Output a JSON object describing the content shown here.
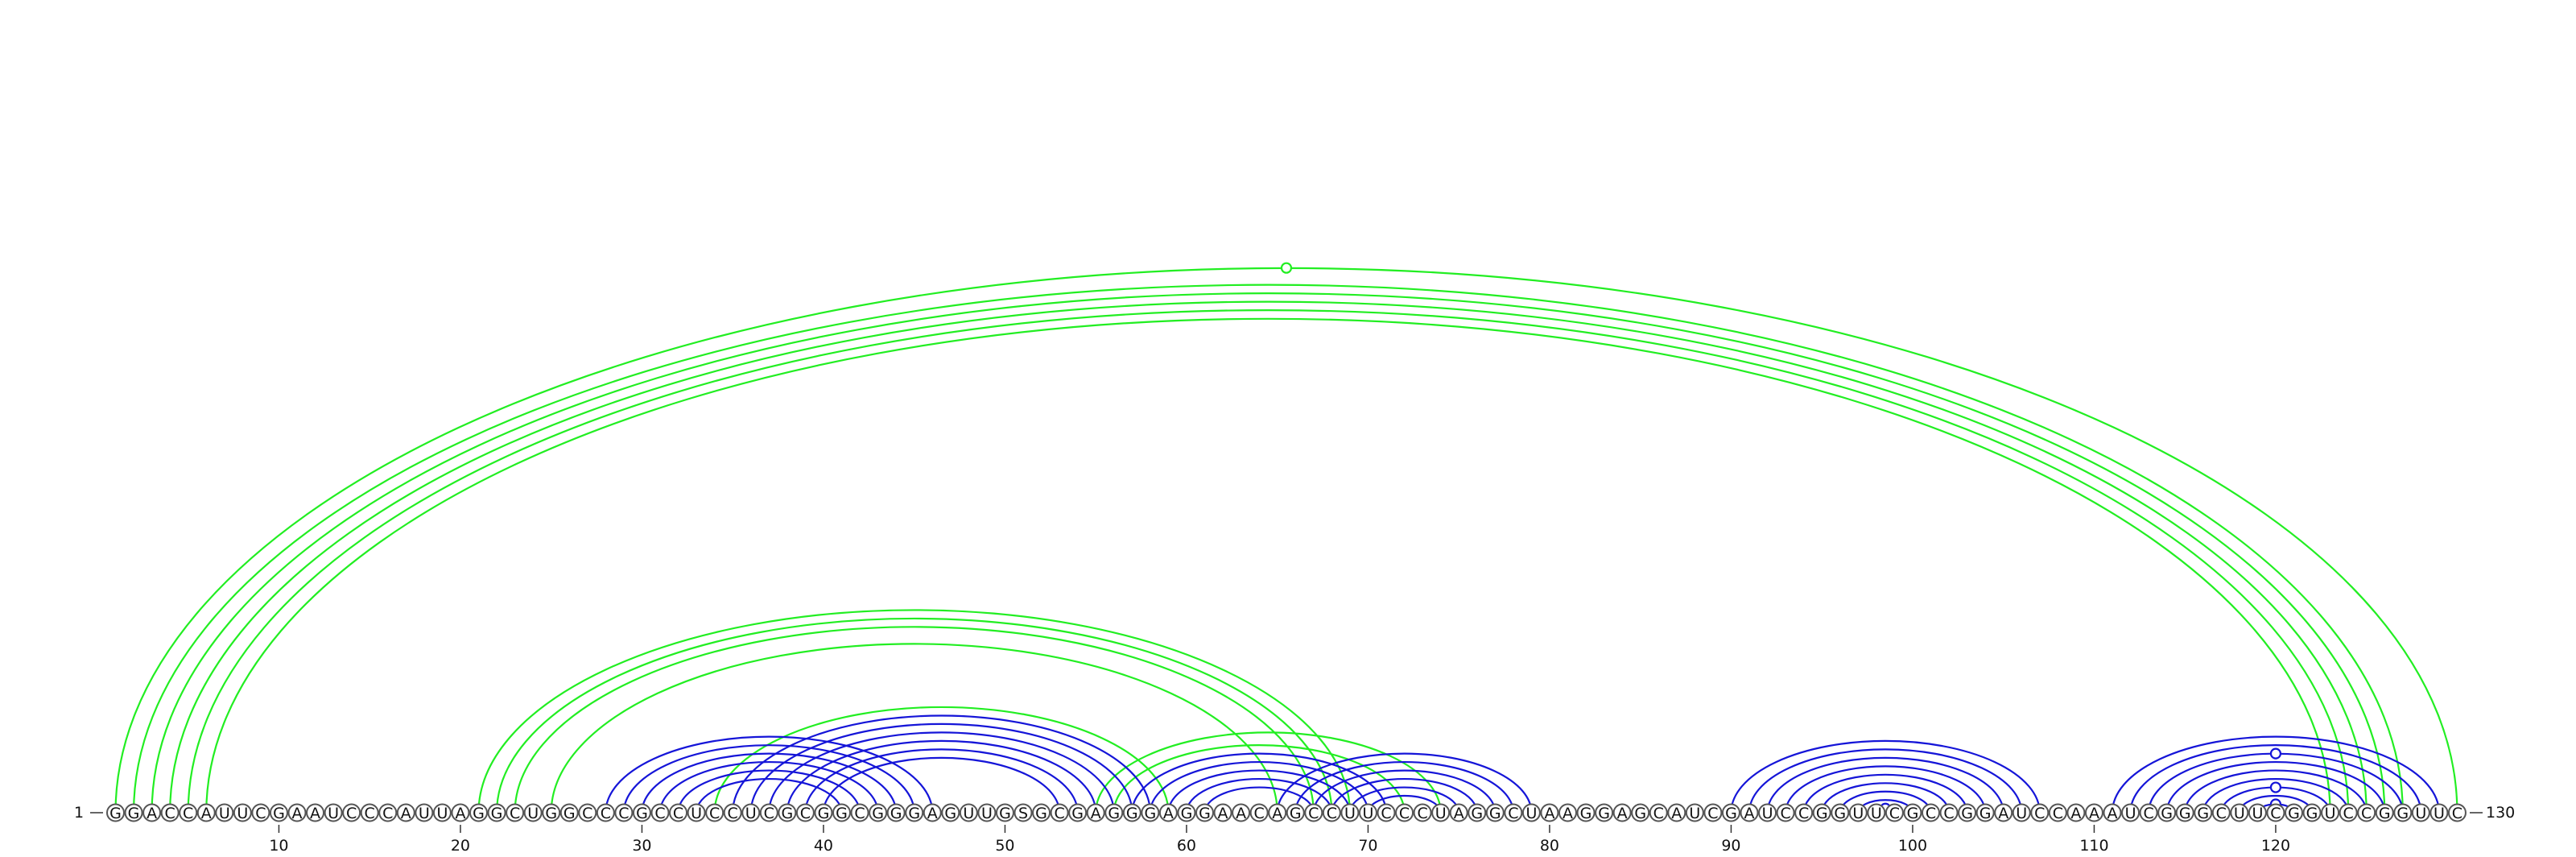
{
  "diagram": {
    "sequence": "GGACCAUUCGAAUCCCAUUAGGCUGGCCCGCCUCCUCGCGGCGGGAGUUGSGCGAGGGAGGAACAGCCUUCCCUAGGCUAAGGAGCAUCGAUCCGGUUCGCCGGAUCCAAAUCGGGCUUCGGUCCGGUUC",
    "start_label": "1",
    "end_label": "130",
    "ticks": [
      "10",
      "20",
      "30",
      "40",
      "50",
      "60",
      "70",
      "80",
      "90",
      "100",
      "110",
      "120"
    ],
    "colors": {
      "green": "#22ee22",
      "blue": "#1515d8"
    },
    "arcs": [
      {
        "i": 1,
        "j": 130,
        "color": "green"
      },
      {
        "i": 2,
        "j": 127,
        "color": "green"
      },
      {
        "i": 3,
        "j": 126,
        "color": "green"
      },
      {
        "i": 4,
        "j": 125,
        "color": "green"
      },
      {
        "i": 5,
        "j": 124,
        "color": "green"
      },
      {
        "i": 6,
        "j": 123,
        "color": "green"
      },
      {
        "i": 21,
        "j": 69,
        "color": "green"
      },
      {
        "i": 22,
        "j": 68,
        "color": "green"
      },
      {
        "i": 23,
        "j": 67,
        "color": "green"
      },
      {
        "i": 25,
        "j": 65,
        "color": "green"
      },
      {
        "i": 34,
        "j": 59,
        "color": "green"
      },
      {
        "i": 55,
        "j": 74,
        "color": "green"
      },
      {
        "i": 56,
        "j": 72,
        "color": "green"
      },
      {
        "i": 28,
        "j": 46,
        "color": "blue"
      },
      {
        "i": 29,
        "j": 45,
        "color": "blue"
      },
      {
        "i": 30,
        "j": 44,
        "color": "blue"
      },
      {
        "i": 31,
        "j": 43,
        "color": "blue"
      },
      {
        "i": 32,
        "j": 42,
        "color": "blue"
      },
      {
        "i": 33,
        "j": 41,
        "color": "blue"
      },
      {
        "i": 35,
        "j": 58,
        "color": "blue"
      },
      {
        "i": 36,
        "j": 57,
        "color": "blue"
      },
      {
        "i": 37,
        "j": 56,
        "color": "blue"
      },
      {
        "i": 38,
        "j": 55,
        "color": "blue"
      },
      {
        "i": 39,
        "j": 54,
        "color": "blue"
      },
      {
        "i": 40,
        "j": 53,
        "color": "blue"
      },
      {
        "i": 57,
        "j": 71,
        "color": "blue"
      },
      {
        "i": 58,
        "j": 70,
        "color": "blue"
      },
      {
        "i": 59,
        "j": 69,
        "color": "blue"
      },
      {
        "i": 60,
        "j": 68,
        "color": "blue"
      },
      {
        "i": 61,
        "j": 67,
        "color": "blue"
      },
      {
        "i": 65,
        "j": 79,
        "color": "blue"
      },
      {
        "i": 66,
        "j": 78,
        "color": "blue"
      },
      {
        "i": 67,
        "j": 77,
        "color": "blue"
      },
      {
        "i": 68,
        "j": 76,
        "color": "blue"
      },
      {
        "i": 69,
        "j": 75,
        "color": "blue"
      },
      {
        "i": 70,
        "j": 74,
        "color": "blue"
      },
      {
        "i": 90,
        "j": 107,
        "color": "blue"
      },
      {
        "i": 91,
        "j": 106,
        "color": "blue"
      },
      {
        "i": 92,
        "j": 105,
        "color": "blue"
      },
      {
        "i": 93,
        "j": 104,
        "color": "blue"
      },
      {
        "i": 94,
        "j": 103,
        "color": "blue"
      },
      {
        "i": 95,
        "j": 102,
        "color": "blue"
      },
      {
        "i": 96,
        "j": 101,
        "color": "blue"
      },
      {
        "i": 97,
        "j": 100,
        "color": "blue"
      },
      {
        "i": 98,
        "j": 99,
        "color": "blue"
      },
      {
        "i": 111,
        "j": 129,
        "color": "blue"
      },
      {
        "i": 112,
        "j": 128,
        "color": "blue"
      },
      {
        "i": 113,
        "j": 127,
        "color": "blue"
      },
      {
        "i": 114,
        "j": 126,
        "color": "blue"
      },
      {
        "i": 115,
        "j": 125,
        "color": "blue"
      },
      {
        "i": 116,
        "j": 124,
        "color": "blue"
      },
      {
        "i": 117,
        "j": 123,
        "color": "blue"
      },
      {
        "i": 118,
        "j": 122,
        "color": "blue"
      },
      {
        "i": 119,
        "j": 121,
        "color": "blue"
      }
    ]
  }
}
